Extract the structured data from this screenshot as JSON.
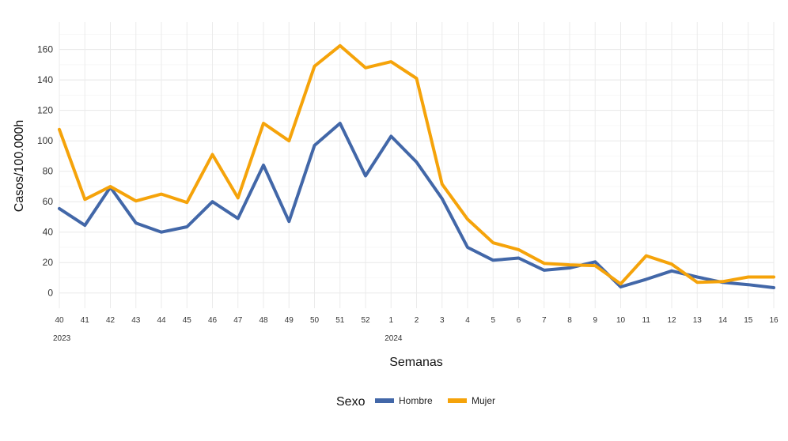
{
  "chart_data": {
    "type": "line",
    "title": "",
    "xlabel": "Semanas",
    "ylabel": "Casos/100.000h",
    "ylim": [
      -10,
      178
    ],
    "yticks": [
      0,
      20,
      40,
      60,
      80,
      100,
      120,
      140,
      160
    ],
    "grid": true,
    "categories": [
      "40",
      "41",
      "42",
      "43",
      "44",
      "45",
      "46",
      "47",
      "48",
      "49",
      "50",
      "51",
      "52",
      "1",
      "2",
      "3",
      "4",
      "5",
      "6",
      "7",
      "8",
      "9",
      "10",
      "11",
      "12",
      "13",
      "14",
      "15",
      "16"
    ],
    "year_labels": [
      {
        "label": "2023",
        "category_index": 0
      },
      {
        "label": "2024",
        "category_index": 13
      }
    ],
    "legend": {
      "title": "Sexo",
      "position": "bottom"
    },
    "series": [
      {
        "name": "Hombre",
        "color": "#4267a8",
        "values": [
          55.5,
          44.5,
          69.5,
          46,
          40,
          43.5,
          60,
          49,
          84,
          47,
          97,
          111.5,
          77,
          103,
          86,
          62,
          30,
          21.5,
          23,
          15,
          16.5,
          20.5,
          4,
          9,
          14.5,
          10.5,
          7,
          5.5,
          3.5
        ]
      },
      {
        "name": "Mujer",
        "color": "#f5a30a",
        "values": [
          107.5,
          61.5,
          70,
          60.5,
          65,
          59.5,
          91,
          62.5,
          111.5,
          100,
          149,
          162.5,
          148,
          152,
          141,
          71.5,
          48.5,
          33,
          28.5,
          19.5,
          18.5,
          18,
          6,
          24.5,
          19,
          7,
          7.5,
          10.5,
          10.5
        ]
      }
    ]
  }
}
